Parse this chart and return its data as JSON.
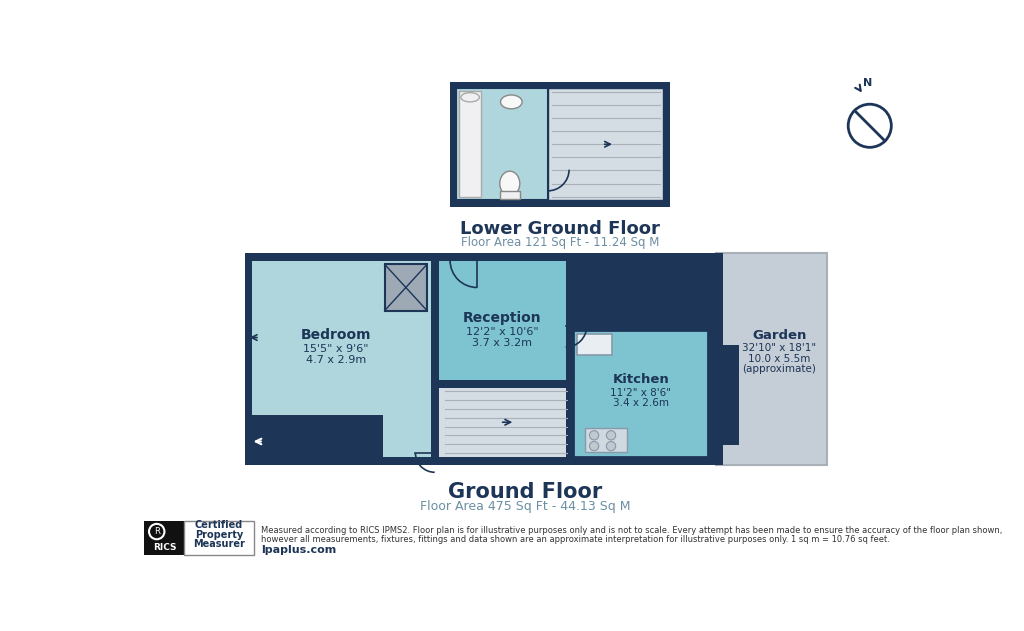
{
  "bg_color": "#ffffff",
  "dark_blue": "#1d3557",
  "light_blue": "#7dc4d0",
  "lighter_blue": "#aed6dc",
  "grey": "#c5cdd6",
  "light_grey": "#d4dce4",
  "title_color": "#1d3557",
  "subtitle_color": "#6b8fa3",
  "lower_floor_title": "Lower Ground Floor",
  "lower_floor_subtitle": "Floor Area 121 Sq Ft - 11.24 Sq M",
  "ground_floor_title": "Ground Floor",
  "ground_floor_subtitle": "Floor Area 475 Sq Ft - 44.13 Sq M",
  "bedroom_label": "Bedroom",
  "bedroom_dims": "15'5\" x 9'6\"",
  "bedroom_metric": "4.7 x 2.9m",
  "reception_label": "Reception",
  "reception_dims": "12'2\" x 10'6\"",
  "reception_metric": "3.7 x 3.2m",
  "kitchen_label": "Kitchen",
  "kitchen_dims": "11'2\" x 8'6\"",
  "kitchen_metric": "3.4 x 2.6m",
  "garden_label": "Garden",
  "garden_dims": "32'10\" x 18'1\"",
  "garden_metric": "10.0 x 5.5m",
  "garden_note": "(approximate)",
  "disclaimer_line1": "Measured according to RICS IPMS2. Floor plan is for illustrative purposes only and is not to scale. Every attempt has been made to ensure the accuracy of the floor plan shown,",
  "disclaimer_line2": "however all measurements, fixtures, fittings and data shown are an approximate interpretation for illustrative purposes only. 1 sq m = 10.76 sq feet.",
  "website": "lpaplus.com",
  "rics_text": "RICS",
  "cert_line1": "Certified",
  "cert_line2": "Property",
  "cert_line3": "Measurer"
}
